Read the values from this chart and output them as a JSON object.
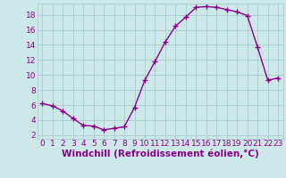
{
  "x": [
    0,
    1,
    2,
    3,
    4,
    5,
    6,
    7,
    8,
    9,
    10,
    11,
    12,
    13,
    14,
    15,
    16,
    17,
    18,
    19,
    20,
    21,
    22,
    23
  ],
  "y": [
    6.2,
    5.9,
    5.2,
    4.2,
    3.3,
    3.2,
    2.7,
    2.9,
    3.1,
    5.7,
    9.3,
    11.8,
    14.4,
    16.5,
    17.7,
    19.0,
    19.1,
    19.0,
    18.7,
    18.4,
    17.9,
    13.7,
    9.3,
    9.6
  ],
  "line_color": "#8b008b",
  "marker": "+",
  "markersize": 4,
  "linewidth": 1.0,
  "bg_color": "#cce8e8",
  "grid_color": "#aacccc",
  "xlabel": "Windchill (Refroidissement éolien,°C)",
  "xlabel_fontsize": 7.5,
  "xlabel_color": "#8b008b",
  "tick_color": "#8b008b",
  "tick_fontsize": 6.5,
  "ylim": [
    1.5,
    19.5
  ],
  "yticks": [
    2,
    4,
    6,
    8,
    10,
    12,
    14,
    16,
    18
  ],
  "xticks": [
    0,
    1,
    2,
    3,
    4,
    5,
    6,
    7,
    8,
    9,
    10,
    11,
    12,
    13,
    14,
    15,
    16,
    17,
    18,
    19,
    20,
    21,
    22,
    23
  ]
}
